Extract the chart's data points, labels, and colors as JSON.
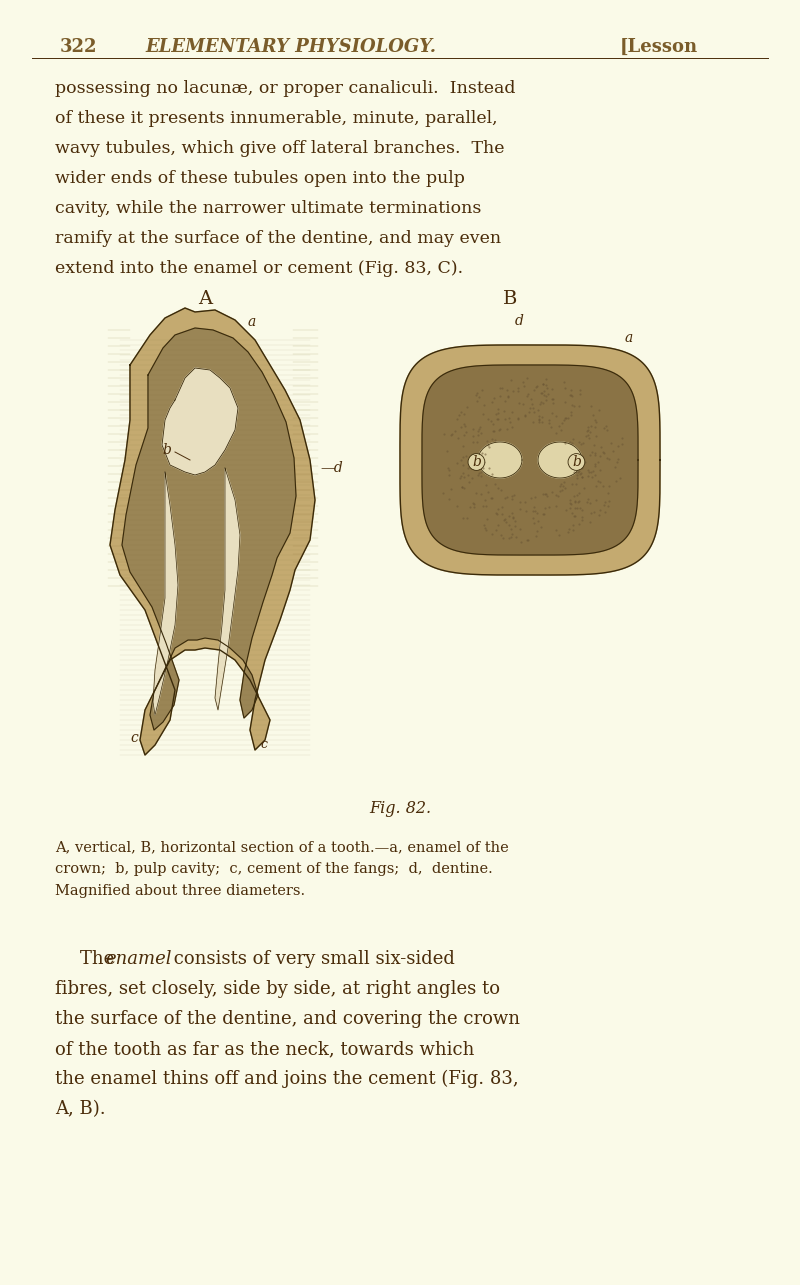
{
  "background_color": "#FAFAE8",
  "page_number": "322",
  "header_title": "ELEMENTARY PHYSIOLOGY.",
  "header_right": "[Lesson",
  "body_text_1": "possessing no lacunæ, or proper canaliculi.  Instead\nof these it presents innumerable, minute, parallel,\nwavy tubules, which give off lateral branches.  The\nwider ends of these tubules open into the pulp\ncavity, while the narrower ultimate terminations\nramify at the surface of the dentine, and may even\nextend into the enamel or cement (Fig. 83, C).",
  "fig_label_A": "A",
  "fig_label_B": "B",
  "fig_caption": "Fig. 82.",
  "fig_description_line1": "A, vertical, B, horizontal section of a tooth.—a, enamel of the",
  "fig_description_line2": "crown;  b, pulp cavity;  c, cement of the fangs;  d,  dentine.",
  "fig_description_line3": "Magnified about three diameters.",
  "body_text_2_pre": "The ",
  "body_text_2_italic": "enamel",
  "body_text_2_post": " consists of very small six-sided\nfibres, set closely, side by side, at right angles to\nthe surface of the dentine, and covering the crown\nof the tooth as far as the neck, towards which\nthe enamel thins off and joins the cement (Fig. 83,\nA, B).",
  "text_color": "#4a2c0a",
  "header_color": "#7a5c2a",
  "tooth_color_enamel": "#b8a878",
  "tooth_color_dentine": "#8b7355",
  "tooth_color_pulp": "#e8e0c8",
  "tooth_color_cement": "#a09060",
  "tooth_color_outline": "#5a4a2a",
  "fig_label_color": "#4a2c0a"
}
